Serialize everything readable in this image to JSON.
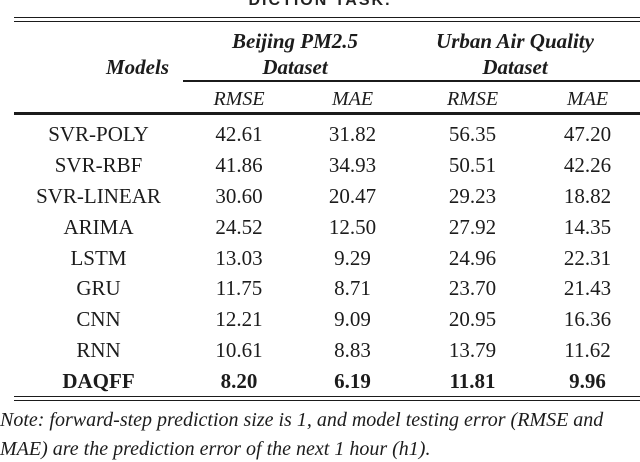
{
  "caption_fragment": "DICTION TASK.",
  "table": {
    "models_header": "Models",
    "group_headers": {
      "beijing": {
        "line1": "Beijing PM2.5",
        "line2": "Dataset"
      },
      "urban": {
        "line1": "Urban Air Quality",
        "line2": "Dataset"
      }
    },
    "sub_headers": [
      "RMSE",
      "MAE",
      "RMSE",
      "MAE"
    ],
    "rows": [
      {
        "model": "SVR-POLY",
        "values": [
          "42.61",
          "31.82",
          "56.35",
          "47.20"
        ]
      },
      {
        "model": "SVR-RBF",
        "values": [
          "41.86",
          "34.93",
          "50.51",
          "42.26"
        ]
      },
      {
        "model": "SVR-LINEAR",
        "values": [
          "30.60",
          "20.47",
          "29.23",
          "18.82"
        ]
      },
      {
        "model": "ARIMA",
        "values": [
          "24.52",
          "12.50",
          "27.92",
          "14.35"
        ]
      },
      {
        "model": "LSTM",
        "values": [
          "13.03",
          "9.29",
          "24.96",
          "22.31"
        ]
      },
      {
        "model": "GRU",
        "values": [
          "11.75",
          "8.71",
          "23.70",
          "21.43"
        ]
      },
      {
        "model": "CNN",
        "values": [
          "12.21",
          "9.09",
          "20.95",
          "16.36"
        ]
      },
      {
        "model": "RNN",
        "values": [
          "10.61",
          "8.83",
          "13.79",
          "11.62"
        ]
      },
      {
        "model": "DAQFF",
        "values": [
          "8.20",
          "6.19",
          "11.81",
          "9.96"
        ],
        "bold": true
      }
    ]
  },
  "note": {
    "line1": "Note:  forward-step prediction size is 1, and model testing error (RMSE and",
    "line2": "MAE) are the prediction error of the next 1 hour (h1)."
  },
  "colors": {
    "text": "#1c1c1c",
    "rule": "#1b1b1b",
    "background": "#ffffff"
  }
}
